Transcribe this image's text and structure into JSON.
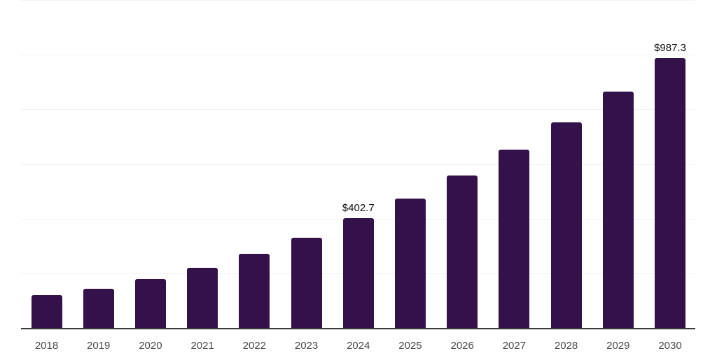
{
  "chart_data": {
    "type": "bar",
    "title": "",
    "xlabel": "",
    "ylabel": "",
    "categories": [
      "2018",
      "2019",
      "2020",
      "2021",
      "2022",
      "2023",
      "2024",
      "2025",
      "2026",
      "2027",
      "2028",
      "2029",
      "2030"
    ],
    "values": [
      122,
      146,
      182,
      223,
      273,
      332,
      402.7,
      475,
      560,
      654,
      754,
      865,
      987.3
    ],
    "data_labels": [
      "",
      "",
      "",
      "",
      "",
      "",
      "$402.7",
      "",
      "",
      "",
      "",
      "",
      "$987.3"
    ],
    "currency_prefix": "$",
    "ylim": [
      0,
      1200
    ],
    "gridline_values": [
      200,
      400,
      600,
      800,
      1000,
      1200
    ],
    "grid": "horizontal",
    "legend_position": "none",
    "colors": {
      "bar": "#33124a",
      "axis_line": "#383838",
      "gridline": "#f2f2f2",
      "tick_label": "#4a4a4a",
      "data_label": "#111111",
      "background": "#ffffff"
    }
  }
}
